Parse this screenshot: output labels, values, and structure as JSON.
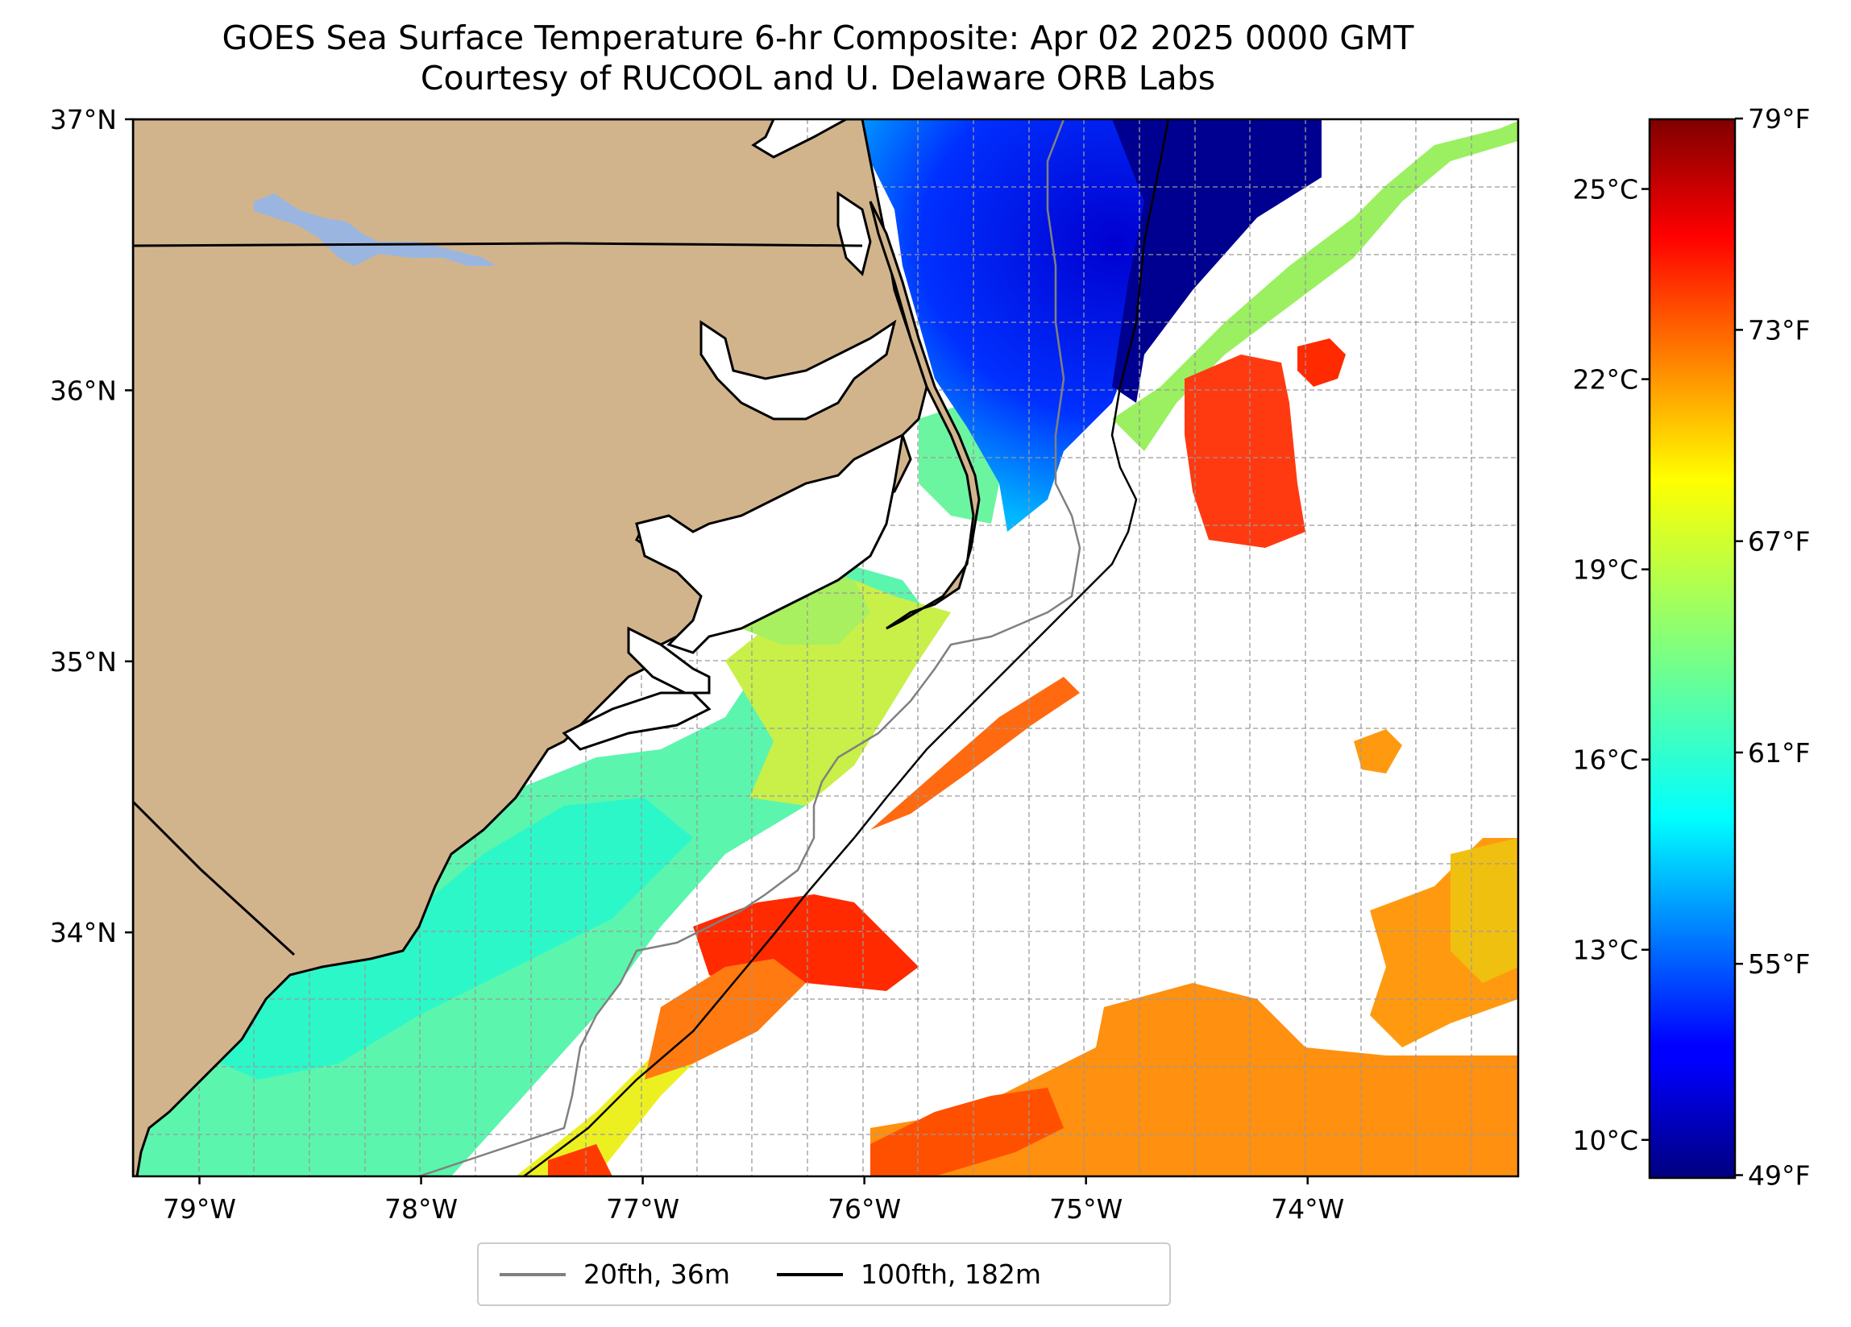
{
  "title": {
    "line1": "GOES Sea Surface Temperature 6-hr Composite: Apr 02 2025 0000 GMT",
    "line2": "Courtesy of RUCOOL and U. Delaware ORB Labs"
  },
  "map": {
    "extent": {
      "lon": [
        -79.3,
        -73.05
      ],
      "lat": [
        33.1,
        37.0
      ]
    },
    "lon_ticks": [
      {
        "value": -79,
        "label": "79°W"
      },
      {
        "value": -78,
        "label": "78°W"
      },
      {
        "value": -77,
        "label": "77°W"
      },
      {
        "value": -76,
        "label": "76°W"
      },
      {
        "value": -75,
        "label": "75°W"
      },
      {
        "value": -74,
        "label": "74°W"
      }
    ],
    "lat_ticks": [
      {
        "value": 37,
        "label": "37°N"
      },
      {
        "value": 36,
        "label": "36°N"
      },
      {
        "value": 35,
        "label": "35°N"
      },
      {
        "value": 34,
        "label": "34°N"
      }
    ],
    "gridlines": true,
    "land_color": "#d2b48c",
    "lake_color": "#9ab6e0"
  },
  "colorbar": {
    "colormap": "jet",
    "celsius_range": [
      9.4,
      26.1
    ],
    "celsius_ticks": [
      {
        "value": 10,
        "label": "10°C"
      },
      {
        "value": 13,
        "label": "13°C"
      },
      {
        "value": 16,
        "label": "16°C"
      },
      {
        "value": 19,
        "label": "19°C"
      },
      {
        "value": 22,
        "label": "22°C"
      },
      {
        "value": 25,
        "label": "25°C"
      }
    ],
    "fahrenheit_ticks": [
      {
        "value": 49,
        "label": "49°F"
      },
      {
        "value": 55,
        "label": "55°F"
      },
      {
        "value": 61,
        "label": "61°F"
      },
      {
        "value": 67,
        "label": "67°F"
      },
      {
        "value": 73,
        "label": "73°F"
      },
      {
        "value": 79,
        "label": "79°F"
      }
    ]
  },
  "legend": [
    {
      "label": "20fth, 36m",
      "color": "#808080"
    },
    {
      "label": "100fth, 182m",
      "color": "#000000"
    }
  ],
  "sst_regions": [
    {
      "name": "cold-water-shelf",
      "temp_f": 50
    },
    {
      "name": "shelf-water-nc",
      "temp_f": 61
    },
    {
      "name": "gulf-stream-warm-core",
      "temp_f": 74
    },
    {
      "name": "offshore-warm-water",
      "temp_f": 71
    }
  ]
}
